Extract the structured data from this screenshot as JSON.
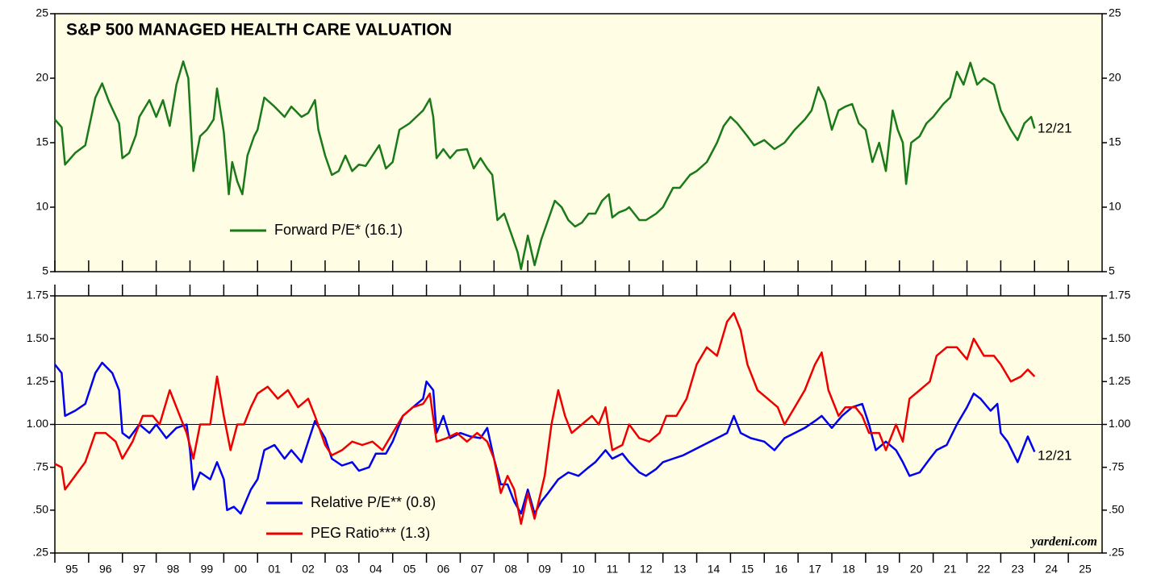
{
  "chart_data": [
    {
      "type": "line",
      "title": "S&P 500 MANAGED HEALTH CARE VALUATION",
      "end_label": "12/21",
      "xlim": [
        1995,
        2026
      ],
      "xticks": [
        1995,
        1996,
        1997,
        1998,
        1999,
        2000,
        2001,
        2002,
        2003,
        2004,
        2005,
        2006,
        2007,
        2008,
        2009,
        2010,
        2011,
        2012,
        2013,
        2014,
        2015,
        2016,
        2017,
        2018,
        2019,
        2020,
        2021,
        2022,
        2023,
        2024,
        2025
      ],
      "ylim": [
        5,
        25
      ],
      "yticks": [
        5,
        10,
        15,
        20,
        25
      ],
      "series": [
        {
          "name": "Forward P/E* (16.1)",
          "color": "#1a7a1a",
          "x": [
            1995.0,
            1995.2,
            1995.3,
            1995.6,
            1995.9,
            1996.2,
            1996.4,
            1996.6,
            1996.9,
            1997.0,
            1997.2,
            1997.4,
            1997.5,
            1997.8,
            1998.0,
            1998.2,
            1998.4,
            1998.6,
            1998.8,
            1998.95,
            1999.1,
            1999.3,
            1999.5,
            1999.7,
            1999.8,
            2000.0,
            2000.15,
            2000.25,
            2000.4,
            2000.55,
            2000.7,
            2000.9,
            2001.0,
            2001.2,
            2001.5,
            2001.8,
            2002.0,
            2002.3,
            2002.5,
            2002.7,
            2002.8,
            2003.0,
            2003.2,
            2003.4,
            2003.6,
            2003.8,
            2004.0,
            2004.2,
            2004.4,
            2004.6,
            2004.8,
            2005.0,
            2005.2,
            2005.5,
            2005.7,
            2005.9,
            2006.1,
            2006.2,
            2006.3,
            2006.5,
            2006.7,
            2006.9,
            2007.2,
            2007.4,
            2007.6,
            2007.8,
            2007.95,
            2008.1,
            2008.3,
            2008.5,
            2008.7,
            2008.8,
            2009.0,
            2009.2,
            2009.4,
            2009.6,
            2009.8,
            2010.0,
            2010.2,
            2010.4,
            2010.6,
            2010.8,
            2011.0,
            2011.2,
            2011.4,
            2011.5,
            2011.7,
            2011.9,
            2012.0,
            2012.3,
            2012.5,
            2012.8,
            2013.0,
            2013.3,
            2013.5,
            2013.8,
            2014.0,
            2014.3,
            2014.6,
            2014.8,
            2015.0,
            2015.2,
            2015.5,
            2015.7,
            2016.0,
            2016.3,
            2016.6,
            2016.9,
            2017.2,
            2017.4,
            2017.6,
            2017.8,
            2018.0,
            2018.2,
            2018.4,
            2018.6,
            2018.8,
            2019.0,
            2019.2,
            2019.4,
            2019.6,
            2019.8,
            2019.95,
            2020.1,
            2020.2,
            2020.35,
            2020.6,
            2020.8,
            2021.0,
            2021.3,
            2021.5,
            2021.7,
            2021.9,
            2022.1,
            2022.3,
            2022.5,
            2022.8,
            2023.0,
            2023.3,
            2023.5,
            2023.7,
            2023.9,
            2024.0
          ],
          "values": [
            16.8,
            16.2,
            13.3,
            14.2,
            14.8,
            18.5,
            19.6,
            18.2,
            16.5,
            13.8,
            14.2,
            15.6,
            17.0,
            18.3,
            17.0,
            18.3,
            16.3,
            19.5,
            21.3,
            20.0,
            12.8,
            15.5,
            16.0,
            16.8,
            19.2,
            15.8,
            11.0,
            13.5,
            12.0,
            11.0,
            14.0,
            15.5,
            16.0,
            18.5,
            17.8,
            17.0,
            17.8,
            17.0,
            17.3,
            18.3,
            16.0,
            14.0,
            12.5,
            12.8,
            14.0,
            12.8,
            13.3,
            13.2,
            14.0,
            14.8,
            13.0,
            13.5,
            16.0,
            16.5,
            17.0,
            17.5,
            18.4,
            17.0,
            13.8,
            14.5,
            13.8,
            14.4,
            14.5,
            13.0,
            13.8,
            13.0,
            12.5,
            9.0,
            9.5,
            8.0,
            6.5,
            5.2,
            7.8,
            5.5,
            7.5,
            9.0,
            10.5,
            10.0,
            9.0,
            8.5,
            8.8,
            9.5,
            9.5,
            10.5,
            11.0,
            9.2,
            9.6,
            9.8,
            10.0,
            9.0,
            9.0,
            9.5,
            10.0,
            11.5,
            11.5,
            12.5,
            12.8,
            13.5,
            15.0,
            16.3,
            17.0,
            16.5,
            15.5,
            14.8,
            15.2,
            14.5,
            15.0,
            16.0,
            16.8,
            17.5,
            19.3,
            18.2,
            16.0,
            17.5,
            17.8,
            18.0,
            16.5,
            16.0,
            13.5,
            15.0,
            12.8,
            17.5,
            16.0,
            15.0,
            11.8,
            15.0,
            15.5,
            16.5,
            17.0,
            18.0,
            18.5,
            20.5,
            19.5,
            21.2,
            19.5,
            20.0,
            19.5,
            17.5,
            16.0,
            15.2,
            16.5,
            17.0,
            16.1
          ]
        }
      ]
    },
    {
      "type": "line",
      "end_label": "12/21",
      "source": "yardeni.com",
      "xlim": [
        1995,
        2026
      ],
      "xticks": [
        {
          "value": 1995,
          "label": "95"
        },
        {
          "value": 1996,
          "label": "96"
        },
        {
          "value": 1997,
          "label": "97"
        },
        {
          "value": 1998,
          "label": "98"
        },
        {
          "value": 1999,
          "label": "99"
        },
        {
          "value": 2000,
          "label": "00"
        },
        {
          "value": 2001,
          "label": "01"
        },
        {
          "value": 2002,
          "label": "02"
        },
        {
          "value": 2003,
          "label": "03"
        },
        {
          "value": 2004,
          "label": "04"
        },
        {
          "value": 2005,
          "label": "05"
        },
        {
          "value": 2006,
          "label": "06"
        },
        {
          "value": 2007,
          "label": "07"
        },
        {
          "value": 2008,
          "label": "08"
        },
        {
          "value": 2009,
          "label": "09"
        },
        {
          "value": 2010,
          "label": "10"
        },
        {
          "value": 2011,
          "label": "11"
        },
        {
          "value": 2012,
          "label": "12"
        },
        {
          "value": 2013,
          "label": "13"
        },
        {
          "value": 2014,
          "label": "14"
        },
        {
          "value": 2015,
          "label": "15"
        },
        {
          "value": 2016,
          "label": "16"
        },
        {
          "value": 2017,
          "label": "17"
        },
        {
          "value": 2018,
          "label": "18"
        },
        {
          "value": 2019,
          "label": "19"
        },
        {
          "value": 2020,
          "label": "20"
        },
        {
          "value": 2021,
          "label": "21"
        },
        {
          "value": 2022,
          "label": "22"
        },
        {
          "value": 2023,
          "label": "23"
        },
        {
          "value": 2024,
          "label": "24"
        },
        {
          "value": 2025,
          "label": "25"
        }
      ],
      "ylim": [
        0.25,
        1.75
      ],
      "yticks": [
        {
          "value": 0.25,
          "label": ".25"
        },
        {
          "value": 0.5,
          "label": ".50"
        },
        {
          "value": 0.75,
          "label": ".75"
        },
        {
          "value": 1,
          "label": "1.00"
        },
        {
          "value": 1.25,
          "label": "1.25"
        },
        {
          "value": 1.5,
          "label": "1.50"
        },
        {
          "value": 1.75,
          "label": "1.75"
        }
      ],
      "hline": 1,
      "series": [
        {
          "name": "Relative P/E** (0.8)",
          "color": "#0000ee",
          "x": [
            1995.0,
            1995.2,
            1995.3,
            1995.6,
            1995.9,
            1996.2,
            1996.4,
            1996.7,
            1996.9,
            1997.0,
            1997.2,
            1997.5,
            1997.8,
            1998.0,
            1998.3,
            1998.6,
            1998.9,
            1999.0,
            1999.1,
            1999.3,
            1999.6,
            1999.8,
            2000.0,
            2000.1,
            2000.3,
            2000.5,
            2000.8,
            2001.0,
            2001.2,
            2001.5,
            2001.8,
            2002.0,
            2002.3,
            2002.5,
            2002.7,
            2003.0,
            2003.2,
            2003.5,
            2003.8,
            2004.0,
            2004.3,
            2004.5,
            2004.8,
            2005.0,
            2005.3,
            2005.6,
            2005.9,
            2006.0,
            2006.2,
            2006.3,
            2006.5,
            2006.7,
            2007.0,
            2007.3,
            2007.6,
            2007.8,
            2008.0,
            2008.2,
            2008.4,
            2008.6,
            2008.8,
            2009.0,
            2009.2,
            2009.4,
            2009.6,
            2009.9,
            2010.2,
            2010.5,
            2010.8,
            2011.0,
            2011.3,
            2011.5,
            2011.8,
            2012.0,
            2012.3,
            2012.5,
            2012.8,
            2013.0,
            2013.3,
            2013.6,
            2013.9,
            2014.2,
            2014.6,
            2014.9,
            2015.1,
            2015.3,
            2015.6,
            2016.0,
            2016.3,
            2016.6,
            2016.9,
            2017.2,
            2017.5,
            2017.7,
            2018.0,
            2018.3,
            2018.6,
            2018.9,
            2019.1,
            2019.3,
            2019.6,
            2019.9,
            2020.1,
            2020.3,
            2020.6,
            2020.9,
            2021.1,
            2021.4,
            2021.7,
            2022.0,
            2022.2,
            2022.4,
            2022.7,
            2022.9,
            2023.0,
            2023.2,
            2023.5,
            2023.8,
            2024.0
          ],
          "values": [
            1.35,
            1.3,
            1.05,
            1.08,
            1.12,
            1.3,
            1.36,
            1.3,
            1.2,
            0.95,
            0.92,
            1.0,
            0.95,
            1.0,
            0.92,
            0.98,
            1.0,
            0.85,
            0.62,
            0.72,
            0.68,
            0.78,
            0.68,
            0.5,
            0.52,
            0.48,
            0.62,
            0.68,
            0.85,
            0.88,
            0.8,
            0.85,
            0.78,
            0.9,
            1.02,
            0.92,
            0.8,
            0.76,
            0.78,
            0.73,
            0.75,
            0.83,
            0.83,
            0.9,
            1.05,
            1.1,
            1.15,
            1.25,
            1.2,
            0.95,
            1.05,
            0.92,
            0.95,
            0.93,
            0.92,
            0.98,
            0.8,
            0.65,
            0.65,
            0.55,
            0.48,
            0.62,
            0.48,
            0.55,
            0.6,
            0.68,
            0.72,
            0.7,
            0.75,
            0.78,
            0.85,
            0.8,
            0.83,
            0.78,
            0.72,
            0.7,
            0.74,
            0.78,
            0.8,
            0.82,
            0.85,
            0.88,
            0.92,
            0.95,
            1.05,
            0.95,
            0.92,
            0.9,
            0.85,
            0.92,
            0.95,
            0.98,
            1.02,
            1.05,
            0.98,
            1.05,
            1.1,
            1.12,
            1.0,
            0.85,
            0.9,
            0.85,
            0.78,
            0.7,
            0.72,
            0.8,
            0.85,
            0.88,
            1.0,
            1.1,
            1.18,
            1.15,
            1.08,
            1.12,
            0.95,
            0.9,
            0.78,
            0.93,
            0.84
          ]
        },
        {
          "name": "PEG Ratio*** (1.3)",
          "color": "#ee0000",
          "x": [
            1995.0,
            1995.2,
            1995.3,
            1995.6,
            1995.9,
            1996.2,
            1996.5,
            1996.8,
            1997.0,
            1997.3,
            1997.6,
            1997.9,
            1998.1,
            1998.4,
            1998.7,
            1998.9,
            1999.1,
            1999.3,
            1999.6,
            1999.8,
            2000.0,
            2000.2,
            2000.4,
            2000.6,
            2000.8,
            2001.0,
            2001.3,
            2001.6,
            2001.9,
            2002.2,
            2002.5,
            2002.7,
            2003.0,
            2003.2,
            2003.5,
            2003.8,
            2004.1,
            2004.4,
            2004.7,
            2005.0,
            2005.3,
            2005.6,
            2005.9,
            2006.1,
            2006.3,
            2006.6,
            2006.9,
            2007.2,
            2007.5,
            2007.8,
            2008.0,
            2008.2,
            2008.4,
            2008.6,
            2008.8,
            2009.0,
            2009.2,
            2009.5,
            2009.7,
            2009.9,
            2010.1,
            2010.3,
            2010.6,
            2010.9,
            2011.1,
            2011.3,
            2011.5,
            2011.8,
            2012.0,
            2012.3,
            2012.6,
            2012.9,
            2013.1,
            2013.4,
            2013.7,
            2014.0,
            2014.3,
            2014.6,
            2014.9,
            2015.1,
            2015.3,
            2015.5,
            2015.8,
            2016.1,
            2016.4,
            2016.6,
            2016.9,
            2017.2,
            2017.5,
            2017.7,
            2017.9,
            2018.2,
            2018.4,
            2018.7,
            2018.9,
            2019.1,
            2019.4,
            2019.6,
            2019.9,
            2020.1,
            2020.3,
            2020.6,
            2020.9,
            2021.1,
            2021.4,
            2021.7,
            2022.0,
            2022.2,
            2022.5,
            2022.8,
            2023.0,
            2023.3,
            2023.6,
            2023.8,
            2024.0
          ],
          "values": [
            0.77,
            0.75,
            0.62,
            0.7,
            0.78,
            0.95,
            0.95,
            0.9,
            0.8,
            0.9,
            1.05,
            1.05,
            1.0,
            1.2,
            1.05,
            0.95,
            0.8,
            1.0,
            1.0,
            1.28,
            1.05,
            0.85,
            1.0,
            1.0,
            1.1,
            1.18,
            1.22,
            1.15,
            1.2,
            1.1,
            1.15,
            1.05,
            0.88,
            0.82,
            0.85,
            0.9,
            0.88,
            0.9,
            0.85,
            0.95,
            1.05,
            1.1,
            1.12,
            1.18,
            0.9,
            0.92,
            0.95,
            0.9,
            0.95,
            0.9,
            0.8,
            0.6,
            0.7,
            0.62,
            0.42,
            0.6,
            0.45,
            0.7,
            1.0,
            1.2,
            1.05,
            0.95,
            1.0,
            1.05,
            1.0,
            1.1,
            0.85,
            0.88,
            1.0,
            0.92,
            0.9,
            0.95,
            1.05,
            1.05,
            1.15,
            1.35,
            1.45,
            1.4,
            1.6,
            1.65,
            1.55,
            1.35,
            1.2,
            1.15,
            1.1,
            1.0,
            1.1,
            1.2,
            1.35,
            1.42,
            1.2,
            1.05,
            1.1,
            1.1,
            1.05,
            0.95,
            0.95,
            0.85,
            1.0,
            0.9,
            1.15,
            1.2,
            1.25,
            1.4,
            1.45,
            1.45,
            1.38,
            1.5,
            1.4,
            1.4,
            1.35,
            1.25,
            1.28,
            1.32,
            1.28
          ]
        }
      ]
    }
  ]
}
